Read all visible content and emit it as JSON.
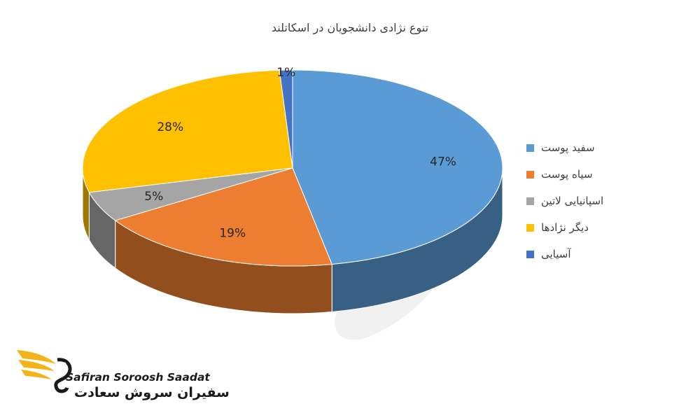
{
  "chart_data": {
    "type": "pie",
    "title": "تنوع نژادی دانشجویان در اسکاتلند",
    "categories": [
      "سفید پوست",
      "سیاه پوست",
      "اسپانیایی لاتین",
      "دیگر نژادها",
      "آسیایی"
    ],
    "values": [
      47,
      19,
      5,
      28,
      1
    ],
    "data_labels": [
      "47%",
      "19%",
      "5%",
      "28%",
      "1%"
    ],
    "colors": [
      "#5b9bd5",
      "#ed7d31",
      "#a5a5a5",
      "#ffc000",
      "#4472c4"
    ],
    "style": "3d",
    "legend_position": "right"
  },
  "logo": {
    "latin_text": "Safiran Soroosh Saadat",
    "farsi_text": "سفیران سروش سعادت"
  }
}
